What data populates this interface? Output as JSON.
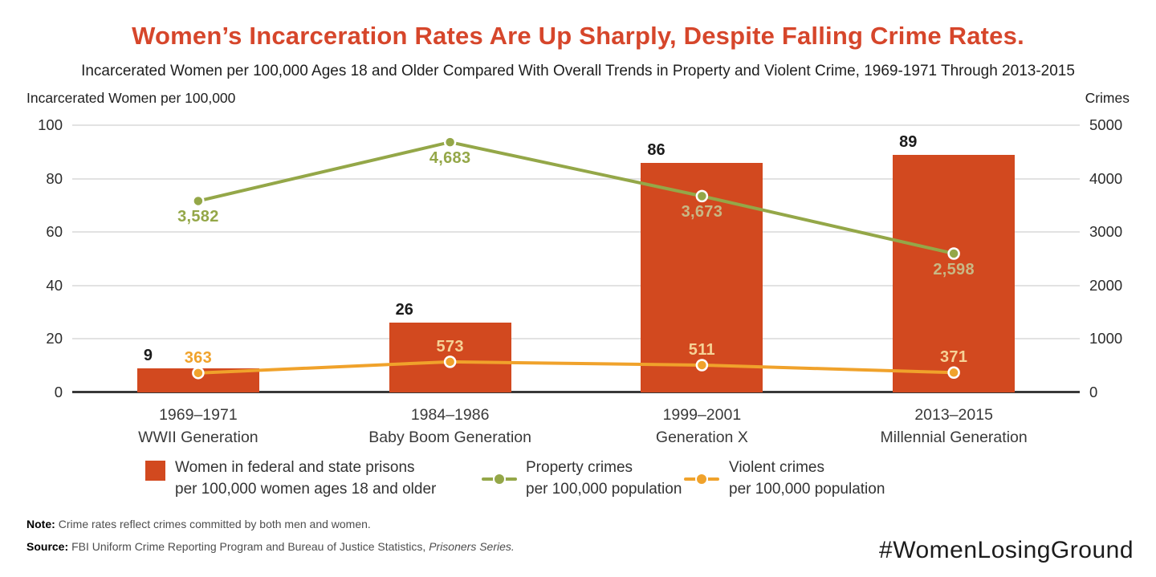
{
  "header": {
    "title": "Women’s Incarceration Rates Are Up Sharply, Despite Falling Crime Rates.",
    "subtitle": "Incarcerated Women per 100,000 Ages 18 and Older Compared With Overall Trends in Property and Violent Crime, 1969-1971 Through 2013-2015"
  },
  "chart_data": {
    "type": "bar",
    "subtype": "bar-line-combo-dual-axis",
    "grid": "horizontal",
    "categories": [
      {
        "period": "1969–1971",
        "generation": "WWII Generation"
      },
      {
        "period": "1984–1986",
        "generation": "Baby Boom Generation"
      },
      {
        "period": "1999–2001",
        "generation": "Generation X"
      },
      {
        "period": "2013–2015",
        "generation": "Millennial Generation"
      }
    ],
    "bar_series": {
      "name": "Women in federal and state prisons per 100,000 women ages 18 and older",
      "axis": "left",
      "values": [
        9,
        26,
        86,
        89
      ],
      "value_labels": [
        "9",
        "26",
        "86",
        "89"
      ],
      "color": "#D2491F"
    },
    "line_series": [
      {
        "name": "Property crimes per 100,000 population",
        "axis": "right",
        "values": [
          3582,
          4683,
          3673,
          2598
        ],
        "value_labels": [
          "3,582",
          "4,683",
          "3,673",
          "2,598"
        ],
        "label_position": "below",
        "label_on_bar": [
          false,
          false,
          true,
          true
        ],
        "color": "#94A748",
        "label_color_on_bar": "#C8B885"
      },
      {
        "name": "Violent crimes per 100,000 population",
        "axis": "right",
        "values": [
          363,
          573,
          511,
          371
        ],
        "value_labels": [
          "363",
          "573",
          "511",
          "371"
        ],
        "label_position": "above",
        "label_on_bar": [
          false,
          true,
          true,
          true
        ],
        "color": "#F0A22B",
        "label_color_on_bar": "#F6D296"
      }
    ],
    "left_axis": {
      "caption": "Incarcerated Women per 100,000",
      "min": 0,
      "max": 100,
      "ticks": [
        100,
        80,
        60,
        40,
        20,
        0
      ]
    },
    "right_axis": {
      "caption": "Crimes",
      "min": 0,
      "max": 5000,
      "ticks": [
        "5000",
        "4000",
        "3000",
        "2000",
        "1000",
        "0"
      ]
    }
  },
  "legend": {
    "items": [
      {
        "swatch": "square",
        "line1": "Women in federal and state prisons",
        "line2": "per 100,000 women ages 18 and older"
      },
      {
        "swatch": "line-dot",
        "line1": "Property crimes",
        "line2": "per 100,000 population"
      },
      {
        "swatch": "line-dot",
        "line1": "Violent crimes",
        "line2": "per 100,000 population"
      }
    ]
  },
  "footer": {
    "note_label": "Note:",
    "note_text": "Crime rates reflect crimes committed by both men and women.",
    "source_label": "Source:",
    "source_text": "FBI Uniform Crime Reporting Program and Bureau of Justice Statistics, ",
    "source_italic": "Prisoners Series.",
    "hashtag": "#WomenLosingGround"
  },
  "colors": {
    "title": "#D6462B",
    "bar": "#D2491F",
    "property_line": "#94A748",
    "violent_line": "#F0A22B",
    "gridline": "#E2E2E2",
    "axis_line": "#383838",
    "tick_text": "#2C2C2C"
  }
}
